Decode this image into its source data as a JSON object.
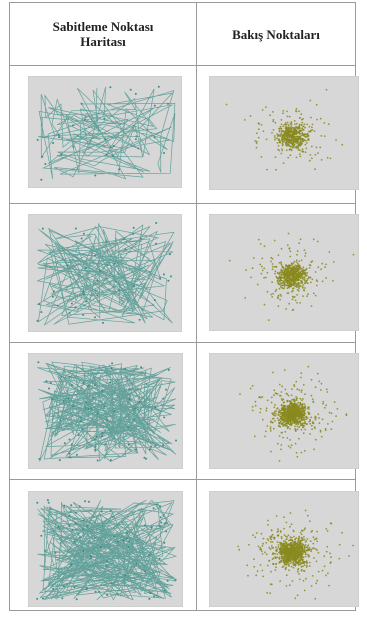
{
  "table": {
    "headers": [
      "Sabitleme Noktası Haritası",
      "Bakış Noktaları"
    ]
  },
  "rows": [
    {
      "fixation_density": 0.25,
      "gaze_density": 0.3
    },
    {
      "fixation_density": 0.45,
      "gaze_density": 0.45
    },
    {
      "fixation_density": 0.8,
      "gaze_density": 0.75
    },
    {
      "fixation_density": 0.9,
      "gaze_density": 0.8
    }
  ],
  "colors": {
    "background_gray": "#d7d7d7",
    "fixation_line": "#3c8f86",
    "gaze_point": "#8a8a1e",
    "border": "#9a9a9a"
  }
}
